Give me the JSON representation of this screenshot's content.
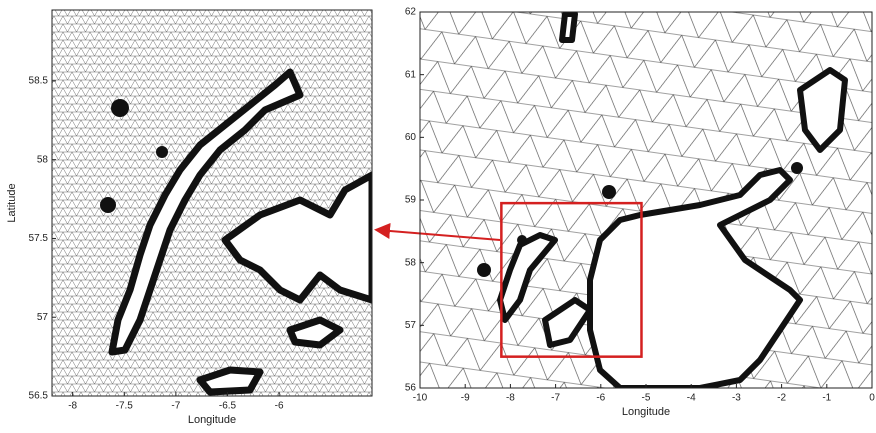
{
  "chart_data": [
    {
      "type": "mesh",
      "xlabel": "Longitude",
      "ylabel": "Latitude",
      "xlim": [
        -8.2,
        -5.1
      ],
      "ylim": [
        56.5,
        58.95
      ],
      "xticks": [
        -8,
        -7.5,
        -7,
        -6.5,
        -6
      ],
      "yticks": [
        56.5,
        57,
        57.5,
        58,
        58.5
      ]
    },
    {
      "type": "mesh",
      "xlabel": "Longitude",
      "xlim": [
        -10,
        0
      ],
      "ylim": [
        56,
        62
      ],
      "xticks": [
        -10,
        -9,
        -8,
        -7,
        -6,
        -5,
        -4,
        -3,
        -2,
        -1,
        0
      ],
      "yticks": [
        56,
        57,
        58,
        59,
        60,
        61,
        62
      ]
    }
  ]
}
